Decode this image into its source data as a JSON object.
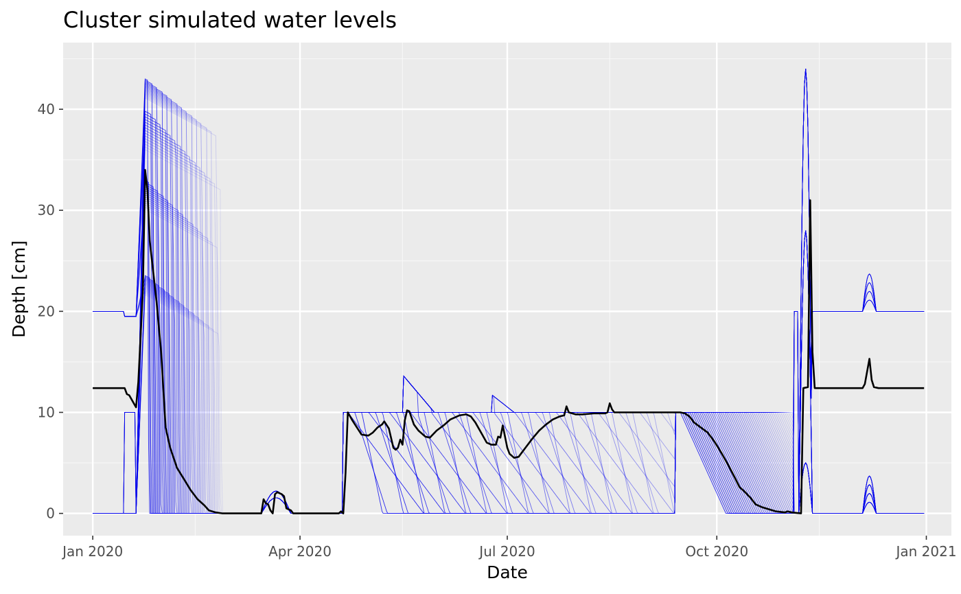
{
  "chart_data": {
    "type": "line",
    "title": "Cluster simulated water levels",
    "xlabel": "Date",
    "ylabel": "Depth [cm]",
    "x_scale": "date",
    "xlim": [
      "2019-12-19",
      "2021-01-12"
    ],
    "ylim": [
      -2.2,
      46.6
    ],
    "grid": true,
    "legend": "none",
    "colors": {
      "panel": "#ebebeb",
      "grid_major": "#ffffff",
      "grid_minor": "#f7f7f7",
      "ensemble": "#0000ee",
      "mean": "#000000",
      "tick_text": "#4d4d4d"
    },
    "x_ticks": [
      {
        "value": "2020-01-01",
        "label": "Jan 2020"
      },
      {
        "value": "2020-04-01",
        "label": "Apr 2020"
      },
      {
        "value": "2020-07-01",
        "label": "Jul 2020"
      },
      {
        "value": "2020-10-01",
        "label": "Oct 2020"
      },
      {
        "value": "2021-01-01",
        "label": "Jan 2021"
      }
    ],
    "x_minor_ticks": [
      "2020-02-15",
      "2020-05-16",
      "2020-08-15",
      "2020-11-15"
    ],
    "y_ticks": [
      {
        "value": 0,
        "label": "0"
      },
      {
        "value": 10,
        "label": "10"
      },
      {
        "value": 20,
        "label": "20"
      },
      {
        "value": 30,
        "label": "30"
      },
      {
        "value": 40,
        "label": "40"
      }
    ],
    "y_minor_ticks": [
      5,
      15,
      25,
      35,
      45
    ],
    "mean_series": {
      "color": "#000000",
      "points": [
        [
          "2020-01-01",
          12.4
        ],
        [
          "2020-01-15",
          12.4
        ],
        [
          "2020-01-16",
          11.8
        ],
        [
          "2020-01-17",
          11.7
        ],
        [
          "2020-01-19",
          10.9
        ],
        [
          "2020-01-20",
          10.5
        ],
        [
          "2020-01-21",
          13.0
        ],
        [
          "2020-01-22",
          17.5
        ],
        [
          "2020-01-23",
          22.0
        ],
        [
          "2020-01-24",
          34.0
        ],
        [
          "2020-01-25",
          32.0
        ],
        [
          "2020-01-26",
          27.0
        ],
        [
          "2020-01-27",
          25.0
        ],
        [
          "2020-01-29",
          21.0
        ],
        [
          "2020-01-31",
          16.0
        ],
        [
          "2020-02-02",
          8.5
        ],
        [
          "2020-02-04",
          6.5
        ],
        [
          "2020-02-07",
          4.5
        ],
        [
          "2020-02-10",
          3.4
        ],
        [
          "2020-02-13",
          2.3
        ],
        [
          "2020-02-16",
          1.4
        ],
        [
          "2020-02-19",
          0.8
        ],
        [
          "2020-02-21",
          0.3
        ],
        [
          "2020-02-24",
          0.1
        ],
        [
          "2020-02-27",
          0.0
        ],
        [
          "2020-03-15",
          0.0
        ],
        [
          "2020-03-16",
          1.4
        ],
        [
          "2020-03-17",
          1.0
        ],
        [
          "2020-03-18",
          0.9
        ],
        [
          "2020-03-19",
          0.3
        ],
        [
          "2020-03-20",
          0.0
        ],
        [
          "2020-03-21",
          1.9
        ],
        [
          "2020-03-22",
          2.1
        ],
        [
          "2020-03-24",
          1.9
        ],
        [
          "2020-03-25",
          1.7
        ],
        [
          "2020-03-26",
          0.5
        ],
        [
          "2020-03-28",
          0.3
        ],
        [
          "2020-03-29",
          0.0
        ],
        [
          "2020-04-18",
          0.0
        ],
        [
          "2020-04-19",
          0.2
        ],
        [
          "2020-04-20",
          0.0
        ],
        [
          "2020-04-21",
          4.0
        ],
        [
          "2020-04-22",
          10.0
        ],
        [
          "2020-04-24",
          9.2
        ],
        [
          "2020-04-26",
          8.5
        ],
        [
          "2020-04-28",
          7.8
        ],
        [
          "2020-05-01",
          7.7
        ],
        [
          "2020-05-03",
          8.0
        ],
        [
          "2020-05-05",
          8.5
        ],
        [
          "2020-05-07",
          8.8
        ],
        [
          "2020-05-08",
          9.1
        ],
        [
          "2020-05-10",
          8.4
        ],
        [
          "2020-05-12",
          6.5
        ],
        [
          "2020-05-13",
          6.3
        ],
        [
          "2020-05-14",
          6.5
        ],
        [
          "2020-05-15",
          7.3
        ],
        [
          "2020-05-16",
          6.8
        ],
        [
          "2020-05-17",
          9.2
        ],
        [
          "2020-05-18",
          10.2
        ],
        [
          "2020-05-19",
          10.1
        ],
        [
          "2020-05-21",
          8.8
        ],
        [
          "2020-05-23",
          8.2
        ],
        [
          "2020-05-26",
          7.6
        ],
        [
          "2020-05-28",
          7.5
        ],
        [
          "2020-05-31",
          8.2
        ],
        [
          "2020-06-03",
          8.7
        ],
        [
          "2020-06-06",
          9.3
        ],
        [
          "2020-06-10",
          9.7
        ],
        [
          "2020-06-13",
          9.8
        ],
        [
          "2020-06-15",
          9.6
        ],
        [
          "2020-06-17",
          9.0
        ],
        [
          "2020-06-20",
          7.8
        ],
        [
          "2020-06-22",
          7.0
        ],
        [
          "2020-06-24",
          6.8
        ],
        [
          "2020-06-26",
          6.8
        ],
        [
          "2020-06-27",
          7.6
        ],
        [
          "2020-06-28",
          7.5
        ],
        [
          "2020-06-29",
          8.7
        ],
        [
          "2020-06-30",
          7.6
        ],
        [
          "2020-07-01",
          6.5
        ],
        [
          "2020-07-02",
          5.9
        ],
        [
          "2020-07-04",
          5.5
        ],
        [
          "2020-07-06",
          5.6
        ],
        [
          "2020-07-09",
          6.5
        ],
        [
          "2020-07-12",
          7.4
        ],
        [
          "2020-07-15",
          8.2
        ],
        [
          "2020-07-18",
          8.8
        ],
        [
          "2020-07-21",
          9.3
        ],
        [
          "2020-07-24",
          9.6
        ],
        [
          "2020-07-26",
          9.7
        ],
        [
          "2020-07-27",
          10.6
        ],
        [
          "2020-07-28",
          10.0
        ],
        [
          "2020-07-31",
          9.8
        ],
        [
          "2020-08-03",
          9.8
        ],
        [
          "2020-08-08",
          9.9
        ],
        [
          "2020-08-13",
          9.9
        ],
        [
          "2020-08-14",
          10.0
        ],
        [
          "2020-08-15",
          10.9
        ],
        [
          "2020-08-16",
          10.3
        ],
        [
          "2020-08-17",
          10.0
        ],
        [
          "2020-09-15",
          10.0
        ],
        [
          "2020-09-17",
          9.9
        ],
        [
          "2020-09-19",
          9.6
        ],
        [
          "2020-09-21",
          9.0
        ],
        [
          "2020-09-24",
          8.5
        ],
        [
          "2020-09-27",
          8.0
        ],
        [
          "2020-09-30",
          7.1
        ],
        [
          "2020-10-03",
          6.0
        ],
        [
          "2020-10-06",
          4.8
        ],
        [
          "2020-10-09",
          3.5
        ],
        [
          "2020-10-11",
          2.6
        ],
        [
          "2020-10-13",
          2.2
        ],
        [
          "2020-10-16",
          1.5
        ],
        [
          "2020-10-18",
          0.9
        ],
        [
          "2020-10-21",
          0.6
        ],
        [
          "2020-10-24",
          0.4
        ],
        [
          "2020-10-27",
          0.2
        ],
        [
          "2020-10-31",
          0.1
        ],
        [
          "2020-11-01",
          0.2
        ],
        [
          "2020-11-03",
          0.1
        ],
        [
          "2020-11-05",
          0.05
        ],
        [
          "2020-11-07",
          0.0
        ],
        [
          "2020-11-08",
          12.4
        ],
        [
          "2020-11-10",
          12.5
        ],
        [
          "2020-11-11",
          31.0
        ],
        [
          "2020-11-12",
          16.0
        ],
        [
          "2020-11-13",
          12.4
        ],
        [
          "2020-12-04",
          12.4
        ],
        [
          "2020-12-05",
          12.8
        ],
        [
          "2020-12-07",
          15.3
        ],
        [
          "2020-12-08",
          13.2
        ],
        [
          "2020-12-09",
          12.5
        ],
        [
          "2020-12-11",
          12.4
        ],
        [
          "2020-12-31",
          12.4
        ]
      ]
    },
    "ensemble": {
      "color": "#0000ee",
      "description_note": "",
      "member_count": 60,
      "events": [
        {
          "start": "2020-01-01",
          "end": "2020-01-14",
          "base_high": 20,
          "base_low": 0
        },
        {
          "start": "2020-01-19",
          "rise_end": "2020-01-23",
          "peak_hi": 43.0,
          "peak_mid": 33.0,
          "peak_lo": 23.6,
          "decay_end": "2020-02-25"
        },
        {
          "start": "2020-03-15",
          "end": "2020-03-27",
          "peak": 2.2
        },
        {
          "start": "2020-04-20",
          "plateau": 10.0,
          "plateau_end": "2020-09-14"
        },
        {
          "start": "2020-05-17",
          "peak": 13.2
        },
        {
          "start": "2020-06-25",
          "peak": 11.6
        },
        {
          "start": "2020-09-14",
          "end": "2020-11-04",
          "plateau": 10.0
        },
        {
          "start": "2020-11-09",
          "peak": 44.3,
          "base_after": 20.0
        },
        {
          "start": "2020-12-05",
          "peak_high": 23.7,
          "peak_low": 3.7
        }
      ]
    }
  }
}
